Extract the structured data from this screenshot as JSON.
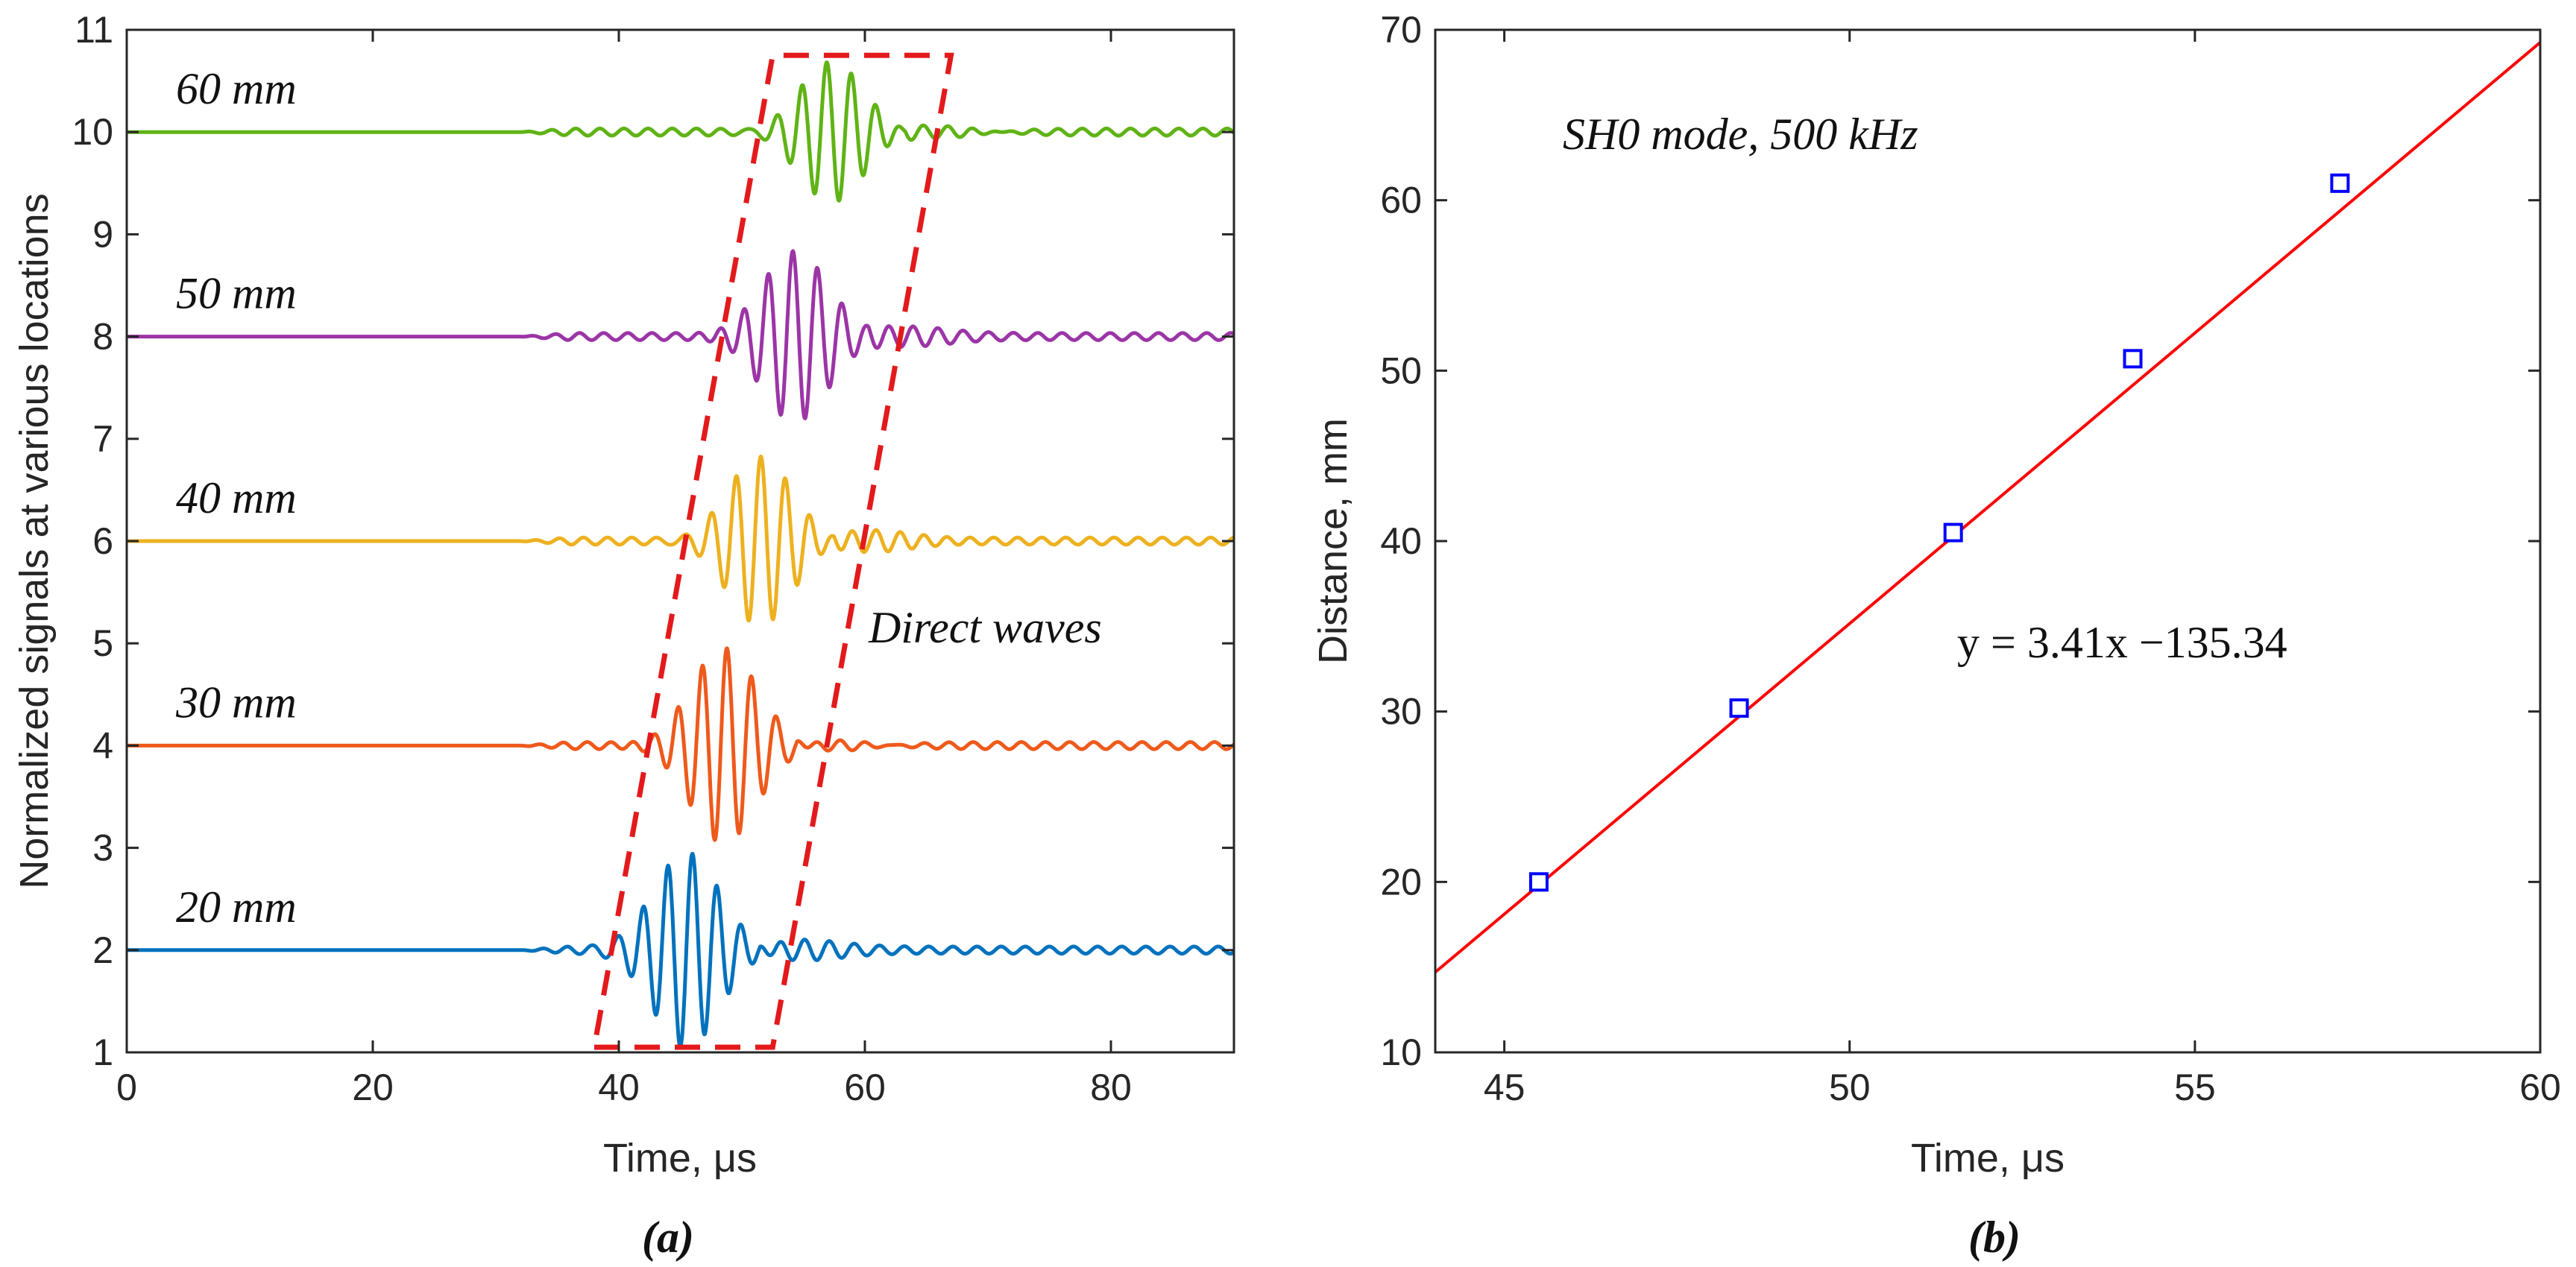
{
  "chart_data": [
    {
      "panel": "(a)",
      "type": "line",
      "xlabel": "Time, μs",
      "ylabel": "Normalized signals at various locations",
      "xlim": [
        0,
        90
      ],
      "ylim": [
        1,
        11
      ],
      "xticks": [
        "0",
        "20",
        "40",
        "60",
        "80"
      ],
      "yticks": [
        "1",
        "2",
        "3",
        "4",
        "5",
        "6",
        "7",
        "8",
        "9",
        "10",
        "11"
      ],
      "series": [
        {
          "name": "20 mm",
          "baseline": 2,
          "packet_center_us": 45.5,
          "amplitude": 0.95,
          "color": "#0072BD"
        },
        {
          "name": "30 mm",
          "baseline": 4,
          "packet_center_us": 48.5,
          "amplitude": 0.95,
          "color": "#EE5A1C"
        },
        {
          "name": "40 mm",
          "baseline": 6,
          "packet_center_us": 51.5,
          "amplitude": 0.85,
          "color": "#EDB120"
        },
        {
          "name": "50 mm",
          "baseline": 8,
          "packet_center_us": 54.3,
          "amplitude": 0.82,
          "color": "#9B35A6"
        },
        {
          "name": "60 mm",
          "baseline": 10,
          "packet_center_us": 57.3,
          "amplitude": 0.72,
          "color": "#60B316"
        }
      ],
      "annotation": "Direct waves",
      "annotation_color": "#E31A1C",
      "box_corners_data": [
        [
          38,
          1.05
        ],
        [
          52.5,
          1.05
        ],
        [
          67,
          10.75
        ],
        [
          52.5,
          10.75
        ]
      ]
    },
    {
      "panel": "(b)",
      "type": "scatter",
      "xlabel": "Time, μs",
      "ylabel": "Distance, mm",
      "xlim": [
        44,
        60
      ],
      "ylim": [
        10,
        70
      ],
      "xticks": [
        "45",
        "50",
        "55",
        "60"
      ],
      "yticks": [
        "10",
        "20",
        "30",
        "40",
        "50",
        "60",
        "70"
      ],
      "points": {
        "x": [
          45.5,
          48.4,
          51.5,
          54.1,
          57.1
        ],
        "y": [
          20,
          30.2,
          40.5,
          50.7,
          61
        ]
      },
      "marker_color": "#0000FF",
      "fit": {
        "slope": 3.41,
        "intercept": -135.34,
        "color": "#FF0000"
      },
      "subtitle": "SH0 mode, 500 kHz",
      "equation": "y = 3.41x −135.34"
    }
  ]
}
